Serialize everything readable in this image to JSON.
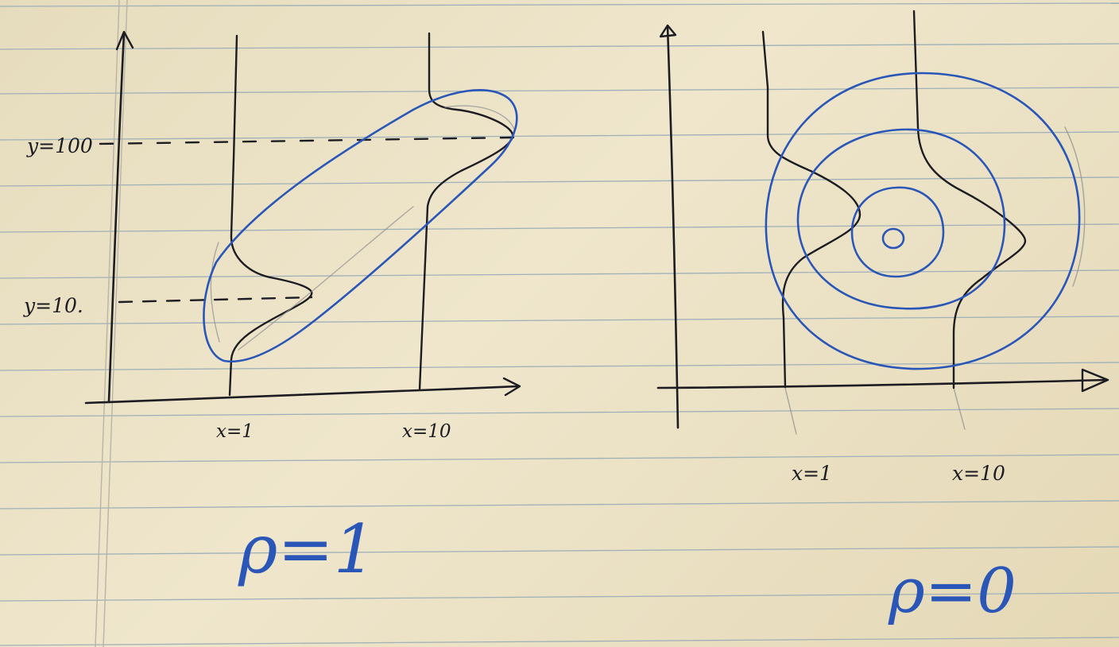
{
  "colors": {
    "paper": "#ece2c6",
    "rule_line": "#9fb0b8",
    "margin_line": "#b8b4a8",
    "pen_black": "#1c1c22",
    "pen_blue": "#2a56b8",
    "pencil": "#8f8f8f"
  },
  "left_panel": {
    "y_labels": [
      "y=100",
      "y=10."
    ],
    "x_labels": [
      "x=1",
      "x=10"
    ],
    "rho_label": "ρ=1"
  },
  "right_panel": {
    "x_labels": [
      "x=1",
      "x=10"
    ],
    "rho_label": "ρ=0"
  }
}
